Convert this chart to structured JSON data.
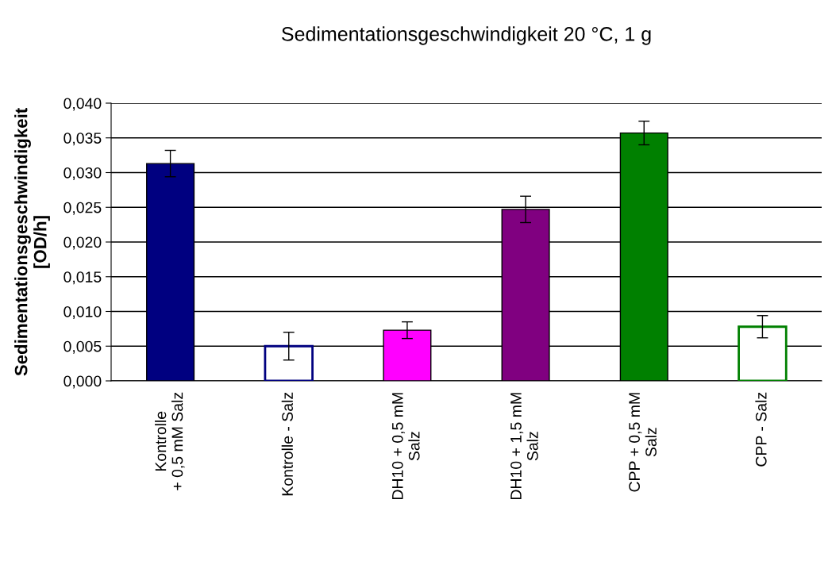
{
  "chart_data": {
    "type": "bar",
    "title": "Sedimentationsgeschwindigkeit 20 °C, 1 g",
    "ylabel": "Sedimentationsgeschwindigkeit\n[OD/h]",
    "categories": [
      "Kontrolle\n+ 0,5 mM Salz",
      "Kontrolle - Salz",
      "DH10 + 0,5 mM\nSalz",
      "DH10 + 1,5 mM\nSalz",
      "CPP + 0,5 mM\nSalz",
      "CPP - Salz"
    ],
    "values": [
      0.0313,
      0.005,
      0.0073,
      0.0247,
      0.0357,
      0.0078
    ],
    "errors": [
      0.0019,
      0.002,
      0.0012,
      0.0019,
      0.0017,
      0.0016
    ],
    "colors": [
      "#000080",
      "#ffffff",
      "#ff00ff",
      "#800080",
      "#008000",
      "#ffffff"
    ],
    "ylim": [
      0,
      0.04
    ],
    "yticks": [
      {
        "value": 0,
        "label": "0,000"
      },
      {
        "value": 0.005,
        "label": "0,005"
      },
      {
        "value": 0.01,
        "label": "0,010"
      },
      {
        "value": 0.015,
        "label": "0,015"
      },
      {
        "value": 0.02,
        "label": "0,020"
      },
      {
        "value": 0.025,
        "label": "0,025"
      },
      {
        "value": 0.03,
        "label": "0,030"
      },
      {
        "value": 0.035,
        "label": "0,035"
      },
      {
        "value": 0.04,
        "label": "0,040"
      }
    ],
    "grid": "y",
    "legend": false
  }
}
